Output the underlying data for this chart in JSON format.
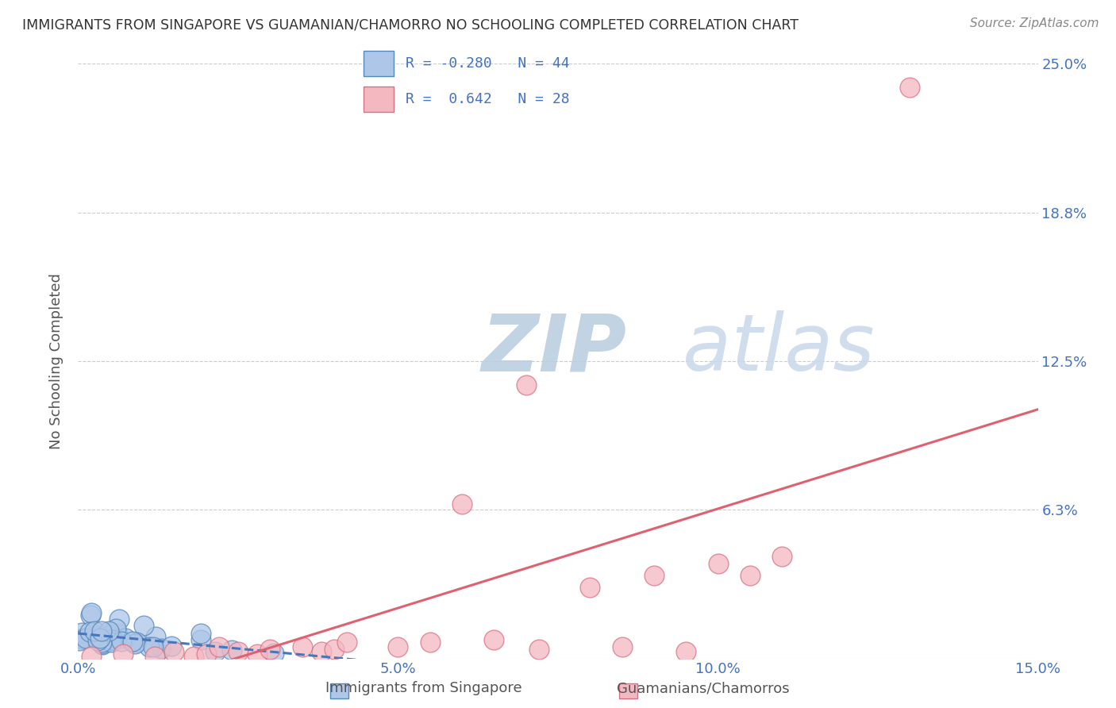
{
  "title": "IMMIGRANTS FROM SINGAPORE VS GUAMANIAN/CHAMORRO NO SCHOOLING COMPLETED CORRELATION CHART",
  "source": "Source: ZipAtlas.com",
  "ylabel": "No Schooling Completed",
  "xlim": [
    0.0,
    0.15
  ],
  "ylim": [
    0.0,
    0.25
  ],
  "xticks": [
    0.0,
    0.05,
    0.1,
    0.15
  ],
  "xticklabels": [
    "0.0%",
    "5.0%",
    "10.0%",
    "15.0%"
  ],
  "ytick_positions": [
    0.0,
    0.0625,
    0.125,
    0.1875,
    0.25
  ],
  "yticklabels": [
    "",
    "6.3%",
    "12.5%",
    "18.8%",
    "25.0%"
  ],
  "legend_labels": [
    "Immigrants from Singapore",
    "Guamanians/Chamorros"
  ],
  "series1_R": -0.28,
  "series1_N": 44,
  "series2_R": 0.642,
  "series2_N": 28,
  "color_blue": "#aec6e8",
  "color_blue_edge": "#5588bb",
  "color_blue_trend": "#4477bb",
  "color_pink": "#f4b8c1",
  "color_pink_edge": "#d97080",
  "color_pink_trend": "#e06070",
  "watermark_zip": "ZIP",
  "watermark_atlas": "atlas",
  "watermark_color_zip": "#c8d8e8",
  "watermark_color_atlas": "#c8d8e8",
  "background_color": "#ffffff",
  "grid_color": "#cccccc",
  "title_color": "#333333",
  "axis_label_color": "#555555",
  "tick_color_right": "#4472c4",
  "series2_x": [
    0.002,
    0.007,
    0.012,
    0.015,
    0.018,
    0.02,
    0.022,
    0.025,
    0.028,
    0.03,
    0.035,
    0.038,
    0.04,
    0.042,
    0.05,
    0.055,
    0.06,
    0.065,
    0.07,
    0.072,
    0.08,
    0.085,
    0.09,
    0.095,
    0.1,
    0.105,
    0.11,
    0.13
  ],
  "series2_y": [
    0.001,
    0.002,
    0.001,
    0.003,
    0.001,
    0.002,
    0.005,
    0.003,
    0.002,
    0.004,
    0.005,
    0.003,
    0.004,
    0.007,
    0.005,
    0.007,
    0.065,
    0.008,
    0.115,
    0.004,
    0.03,
    0.005,
    0.035,
    0.003,
    0.04,
    0.035,
    0.043,
    0.24
  ]
}
